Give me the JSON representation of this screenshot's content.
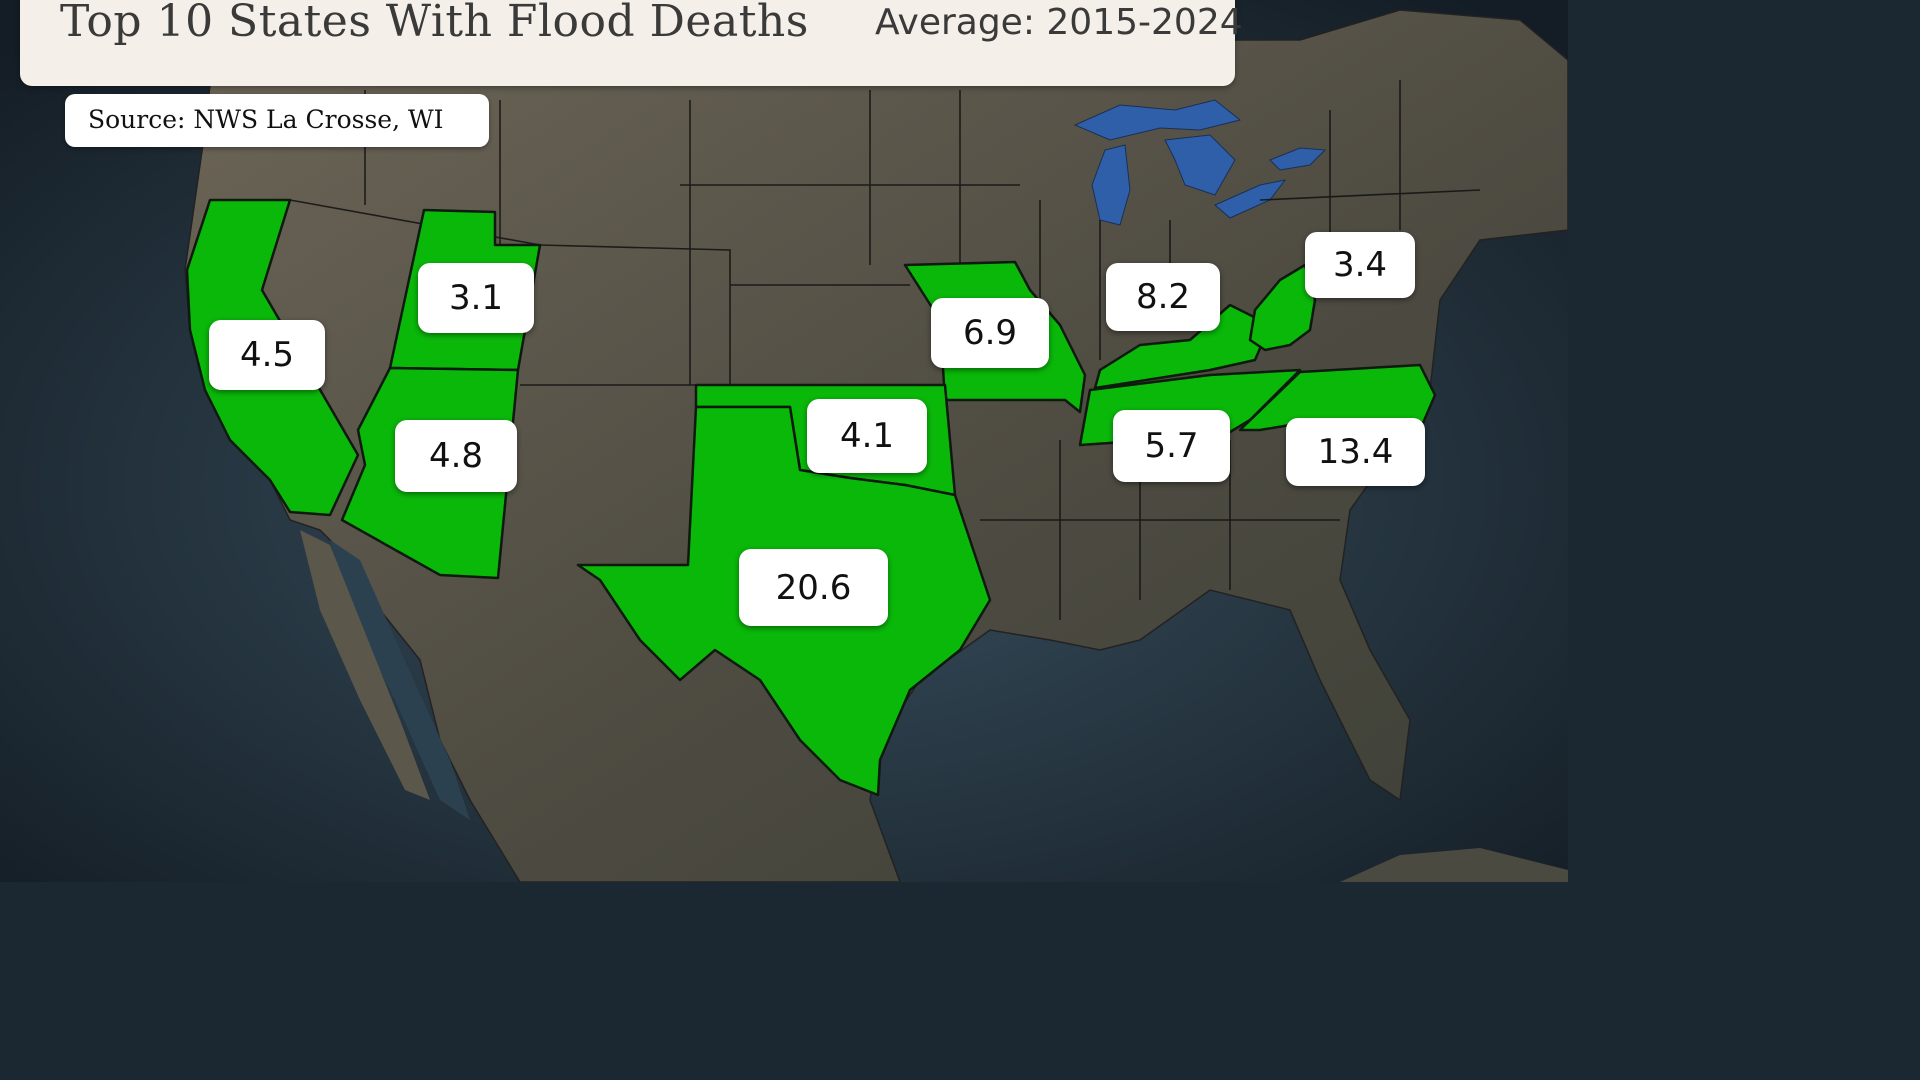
{
  "header": {
    "title": "Top 10 States With Flood Deaths",
    "subtitle": "Average: 2015-2024"
  },
  "source": "Source: NWS La Crosse, WI",
  "colors": {
    "highlight": "#0ab80a",
    "land": "#5f5b50",
    "ocean": "#2a3b4a",
    "lakes": "#2f5fa8",
    "label_bg": "#ffffff"
  },
  "states": [
    {
      "name": "California",
      "value": "4.5"
    },
    {
      "name": "Utah",
      "value": "3.1"
    },
    {
      "name": "Arizona",
      "value": "4.8"
    },
    {
      "name": "Missouri",
      "value": "6.9"
    },
    {
      "name": "Oklahoma",
      "value": "4.1"
    },
    {
      "name": "Texas",
      "value": "20.6"
    },
    {
      "name": "Kentucky",
      "value": "8.2"
    },
    {
      "name": "Tennessee",
      "value": "5.7"
    },
    {
      "name": "West Virginia",
      "value": "3.4"
    },
    {
      "name": "North Carolina",
      "value": "13.4"
    }
  ]
}
